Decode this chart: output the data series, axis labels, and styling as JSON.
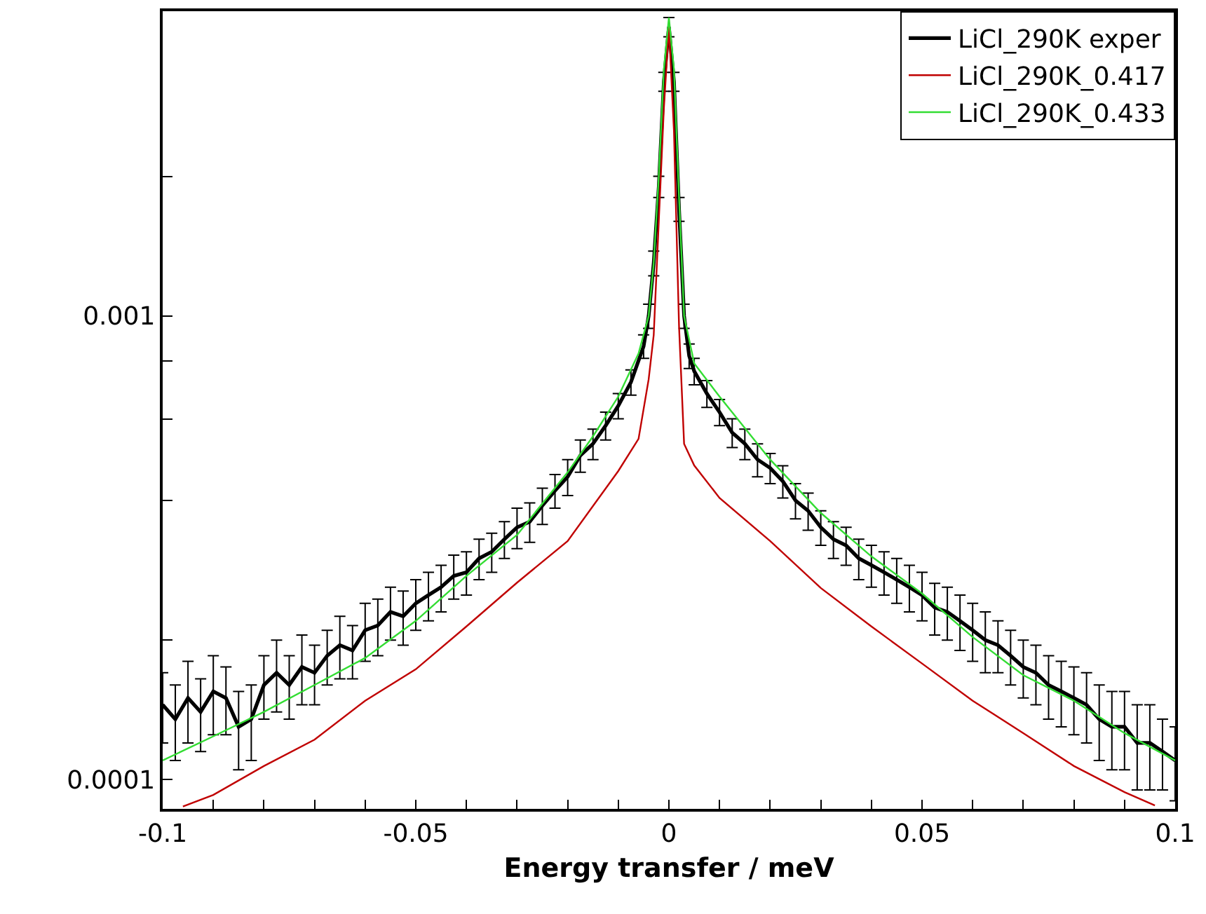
{
  "chart_data": {
    "type": "line",
    "xlabel": "Energy transfer / meV",
    "log": "y",
    "legend": "top right",
    "marker": "none",
    "line_style": "solid",
    "xlim": [
      -0.1,
      0.1
    ],
    "ylim": [
      8.65e-05,
      0.00454
    ],
    "xticks": [
      -0.1,
      {
        "value": -0.09,
        "label": null
      },
      {
        "value": -0.08,
        "label": null
      },
      {
        "value": -0.07,
        "label": null
      },
      {
        "value": -0.06,
        "label": null
      },
      -0.05,
      {
        "value": -0.04,
        "label": null
      },
      {
        "value": -0.03,
        "label": null
      },
      {
        "value": -0.02,
        "label": null
      },
      {
        "value": -0.01,
        "label": null
      },
      0,
      {
        "value": 0.01,
        "label": null
      },
      {
        "value": 0.02,
        "label": null
      },
      {
        "value": 0.03,
        "label": null
      },
      {
        "value": 0.04,
        "label": null
      },
      0.05,
      {
        "value": 0.06,
        "label": null
      },
      {
        "value": 0.07,
        "label": null
      },
      {
        "value": 0.08,
        "label": null
      },
      {
        "value": 0.09,
        "label": null
      },
      0.1
    ],
    "yticks": [
      0.0001,
      {
        "value": 0.0002,
        "label": null
      },
      {
        "value": 0.0004,
        "label": null
      },
      {
        "value": 0.0006,
        "label": null
      },
      {
        "value": 0.0008,
        "label": null
      },
      0.001,
      {
        "value": 0.002,
        "label": null
      }
    ],
    "series": [
      {
        "name": "LiCl_290K exper",
        "color": "#000000",
        "x": [
          -0.1,
          -0.0975,
          -0.095,
          -0.0925,
          -0.09,
          -0.0875,
          -0.085,
          -0.0825,
          -0.08,
          -0.0775,
          -0.075,
          -0.0725,
          -0.07,
          -0.0675,
          -0.065,
          -0.0625,
          -0.06,
          -0.0575,
          -0.055,
          -0.0525,
          -0.05,
          -0.0475,
          -0.045,
          -0.0425,
          -0.04,
          -0.0375,
          -0.035,
          -0.0325,
          -0.03,
          -0.0275,
          -0.025,
          -0.0225,
          -0.02,
          -0.0175,
          -0.015,
          -0.0125,
          -0.01,
          -0.0075,
          -0.005,
          -0.004,
          -0.003,
          -0.002,
          -0.001,
          0,
          0.001,
          0.002,
          0.003,
          0.004,
          0.005,
          0.0075,
          0.01,
          0.0125,
          0.015,
          0.0175,
          0.02,
          0.0225,
          0.025,
          0.0275,
          0.03,
          0.0325,
          0.035,
          0.0375,
          0.04,
          0.0425,
          0.045,
          0.0475,
          0.05,
          0.0525,
          0.055,
          0.0575,
          0.06,
          0.0625,
          0.065,
          0.0675,
          0.07,
          0.0725,
          0.075,
          0.0775,
          0.08,
          0.0825,
          0.085,
          0.0875,
          0.09,
          0.0925,
          0.095,
          0.0975,
          0.1
        ],
        "values": [
          0.000145,
          0.000135,
          0.00015,
          0.00014,
          0.000155,
          0.00015,
          0.00013,
          0.000135,
          0.00016,
          0.00017,
          0.00016,
          0.000175,
          0.00017,
          0.000185,
          0.000195,
          0.00019,
          0.00021,
          0.000215,
          0.00023,
          0.000225,
          0.00024,
          0.00025,
          0.00026,
          0.000275,
          0.00028,
          0.0003,
          0.00031,
          0.00033,
          0.00035,
          0.00036,
          0.00039,
          0.00042,
          0.00045,
          0.0005,
          0.00053,
          0.00058,
          0.00064,
          0.00072,
          0.00086,
          0.001,
          0.0013,
          0.0019,
          0.0032,
          0.0042,
          0.0032,
          0.0017,
          0.001,
          0.00082,
          0.00076,
          0.00068,
          0.00062,
          0.00056,
          0.00053,
          0.00049,
          0.00047,
          0.00044,
          0.0004,
          0.00038,
          0.00035,
          0.00033,
          0.00032,
          0.0003,
          0.00029,
          0.00028,
          0.00027,
          0.00026,
          0.00025,
          0.000235,
          0.00023,
          0.00022,
          0.00021,
          0.0002,
          0.000195,
          0.000185,
          0.000175,
          0.00017,
          0.00016,
          0.000155,
          0.00015,
          0.000145,
          0.000135,
          0.00013,
          0.00013,
          0.00012,
          0.00012,
          0.000115,
          0.00011
        ],
        "errors": [
          2.5e-05,
          2.5e-05,
          3e-05,
          2.5e-05,
          3e-05,
          2.5e-05,
          2.5e-05,
          2.5e-05,
          2.5e-05,
          3e-05,
          2.5e-05,
          3e-05,
          2.5e-05,
          2.5e-05,
          3e-05,
          2.5e-05,
          3e-05,
          3e-05,
          3e-05,
          3e-05,
          3e-05,
          3e-05,
          3e-05,
          3e-05,
          3e-05,
          3e-05,
          3e-05,
          3e-05,
          3.5e-05,
          3.5e-05,
          3.5e-05,
          3.5e-05,
          4e-05,
          4e-05,
          4e-05,
          4e-05,
          4e-05,
          4.5e-05,
          5e-05,
          6e-05,
          8e-05,
          0.0001,
          0.00015,
          0.0002,
          0.00015,
          0.0001,
          6e-05,
          5e-05,
          5e-05,
          4.5e-05,
          4e-05,
          4e-05,
          4e-05,
          4e-05,
          3.5e-05,
          3.5e-05,
          3.5e-05,
          3.5e-05,
          3e-05,
          3e-05,
          3e-05,
          3e-05,
          3e-05,
          3e-05,
          3e-05,
          3e-05,
          3e-05,
          3e-05,
          3e-05,
          3e-05,
          3e-05,
          3e-05,
          2.5e-05,
          2.5e-05,
          2.5e-05,
          2.5e-05,
          2.5e-05,
          2.5e-05,
          2.5e-05,
          2.5e-05,
          2.5e-05,
          2.5e-05,
          2.5e-05,
          2.5e-05,
          2.5e-05,
          2e-05,
          2e-05
        ]
      },
      {
        "name": "LiCl_290K_0.417",
        "color": "#c00000",
        "x": [
          -0.096,
          -0.09,
          -0.08,
          -0.07,
          -0.06,
          -0.05,
          -0.04,
          -0.03,
          -0.02,
          -0.01,
          -0.006,
          -0.004,
          -0.003,
          -0.002,
          -0.001,
          0,
          0.001,
          0.002,
          0.003,
          0.005,
          0.01,
          0.02,
          0.03,
          0.04,
          0.05,
          0.06,
          0.07,
          0.08,
          0.09,
          0.096
        ],
        "values": [
          8.75e-05,
          9.27e-05,
          0.000107,
          0.000122,
          0.000148,
          0.000173,
          0.000214,
          0.000266,
          0.000327,
          0.000463,
          0.000543,
          0.00073,
          0.00091,
          0.0016,
          0.0028,
          0.0042,
          0.0025,
          0.00095,
          0.00053,
          0.000476,
          0.000405,
          0.000327,
          0.000259,
          0.000214,
          0.000178,
          0.000148,
          0.000126,
          0.000107,
          9.4e-05,
          8.8e-05
        ]
      },
      {
        "name": "LiCl_290K_0.433",
        "color": "#33dd33",
        "x": [
          -0.1,
          -0.09,
          -0.08,
          -0.07,
          -0.06,
          -0.05,
          -0.04,
          -0.03,
          -0.02,
          -0.015,
          -0.01,
          -0.006,
          -0.004,
          -0.003,
          -0.002,
          -0.001,
          0,
          0.001,
          0.002,
          0.003,
          0.005,
          0.01,
          0.02,
          0.03,
          0.04,
          0.05,
          0.06,
          0.07,
          0.08,
          0.09,
          0.1
        ],
        "values": [
          0.00011,
          0.000124,
          0.00014,
          0.00016,
          0.000183,
          0.00022,
          0.000275,
          0.000337,
          0.00046,
          0.00055,
          0.00067,
          0.00083,
          0.001,
          0.0013,
          0.002,
          0.0034,
          0.0044,
          0.0034,
          0.0018,
          0.001,
          0.00079,
          0.00067,
          0.00049,
          0.000376,
          0.000303,
          0.000252,
          0.000203,
          0.000168,
          0.000148,
          0.000126,
          0.00011
        ]
      }
    ]
  }
}
